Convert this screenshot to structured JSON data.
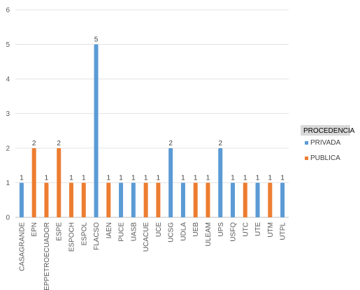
{
  "chart_data": {
    "type": "bar",
    "categories": [
      "CASAGRANDE",
      "EPN",
      "EPPETROECUADOR",
      "ESPE",
      "ESPOCH",
      "ESPOL",
      "FLACSO",
      "IAEN",
      "PUCE",
      "UASB",
      "UCACUE",
      "UCE",
      "UCSG",
      "UDLA",
      "UEB",
      "ULEAM",
      "UPS",
      "USFQ",
      "UTC",
      "UTE",
      "UTM",
      "UTPL"
    ],
    "series": [
      {
        "name": "PRIVADA",
        "color": "#5B9BD5",
        "values": [
          1,
          null,
          null,
          null,
          null,
          null,
          5,
          null,
          1,
          1,
          null,
          null,
          2,
          1,
          null,
          null,
          2,
          1,
          null,
          1,
          null,
          1
        ]
      },
      {
        "name": "PUBLICA",
        "color": "#ED7D31",
        "values": [
          null,
          2,
          1,
          2,
          1,
          1,
          null,
          1,
          null,
          null,
          1,
          1,
          null,
          null,
          1,
          1,
          null,
          null,
          1,
          null,
          1,
          null
        ]
      }
    ],
    "ylim": [
      0,
      6
    ],
    "yticks": [
      0,
      1,
      2,
      3,
      4,
      5,
      6
    ],
    "grid": true,
    "legend_title": "PROCEDENCIA",
    "legend_position": "right"
  }
}
